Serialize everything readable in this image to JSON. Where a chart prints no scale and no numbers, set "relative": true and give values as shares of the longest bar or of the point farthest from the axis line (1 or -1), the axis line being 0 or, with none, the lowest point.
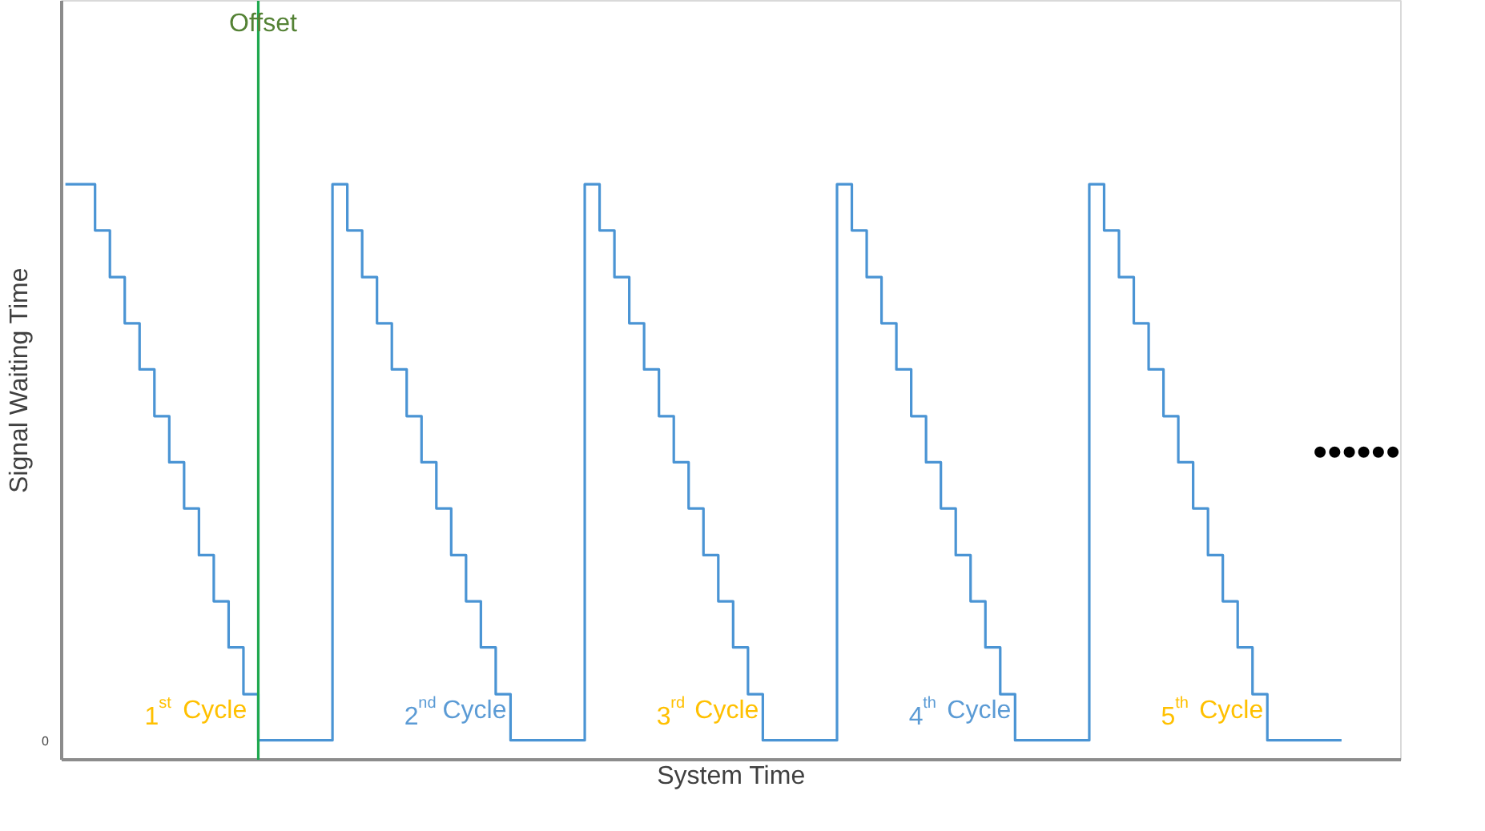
{
  "chart_data": {
    "type": "step",
    "relative": true,
    "xlabel": "System Time",
    "ylabel": "Signal Waiting Time",
    "categories": [
      null,
      null,
      null,
      null,
      null,
      null,
      null,
      null,
      null,
      null,
      null,
      null,
      null,
      null,
      null,
      null,
      null,
      null,
      null,
      null,
      null,
      null,
      null,
      null,
      null,
      null,
      null,
      null,
      null,
      null,
      null,
      null,
      null,
      null,
      null,
      null,
      null,
      null,
      null,
      null,
      null,
      null,
      null,
      null,
      null,
      null,
      null,
      null,
      null,
      null,
      null,
      null,
      null,
      null,
      null,
      null,
      null,
      null,
      null,
      null,
      null,
      null,
      null,
      null,
      null,
      null,
      null,
      null,
      null,
      null,
      null,
      null,
      null,
      null,
      null,
      null,
      null,
      null,
      null,
      null,
      null,
      null,
      null,
      null,
      null,
      null,
      null
    ],
    "series": [
      {
        "color": "#4a94d4",
        "values": [
          1,
          1,
          0.917,
          0.833,
          0.75,
          0.667,
          0.583,
          0.5,
          0.417,
          0.333,
          0.25,
          0.167,
          0.083,
          0,
          0,
          0,
          0,
          0,
          1,
          0.917,
          0.833,
          0.75,
          0.667,
          0.583,
          0.5,
          0.417,
          0.333,
          0.25,
          0.167,
          0.083,
          0,
          0,
          0,
          0,
          0,
          1,
          0.917,
          0.833,
          0.75,
          0.667,
          0.583,
          0.5,
          0.417,
          0.333,
          0.25,
          0.167,
          0.083,
          0,
          0,
          0,
          0,
          0,
          1,
          0.917,
          0.833,
          0.75,
          0.667,
          0.583,
          0.5,
          0.417,
          0.333,
          0.25,
          0.167,
          0.083,
          0,
          0,
          0,
          0,
          0,
          1,
          0.917,
          0.833,
          0.75,
          0.667,
          0.583,
          0.5,
          0.417,
          0.333,
          0.25,
          0.167,
          0.083,
          0,
          0,
          0,
          0,
          0,
          0
        ]
      }
    ],
    "annotations": [
      "0",
      "Offset",
      "1$^{st}$ Cycle",
      "2$^{nd}$ Cycle",
      "3$^{rd}$ Cycle",
      "4$^{th}$ Cycle",
      "5$^{th}$ Cycle",
      "••••••"
    ],
    "grid": false
  }
}
